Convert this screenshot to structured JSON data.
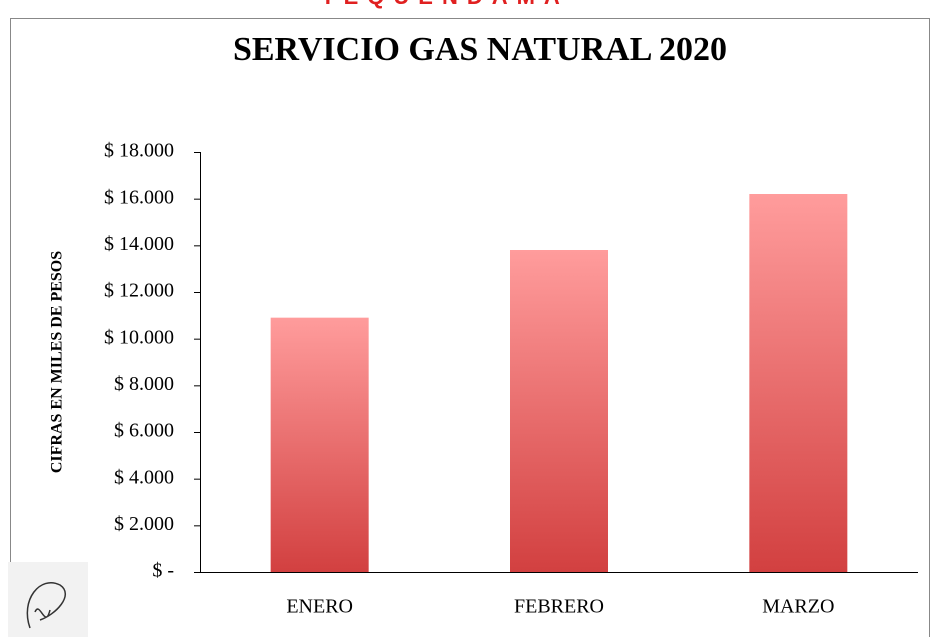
{
  "header": {
    "text": "TEQUENDAMA"
  },
  "chart_data": {
    "type": "bar",
    "title": "SERVICIO GAS NATURAL 2020",
    "y_label": "CIFRAS  EN MILES DE  PESOS",
    "categories": [
      "ENERO",
      "FEBRERO",
      "MARZO"
    ],
    "values": [
      10900,
      13800,
      16200
    ],
    "color_top": "#ff9c9c",
    "color_bottom": "#d24040",
    "ylim": [
      0,
      18000
    ],
    "yticks": [
      {
        "value": 0,
        "label": "$ -"
      },
      {
        "value": 2000,
        "label": "$ 2.000"
      },
      {
        "value": 4000,
        "label": "$ 4.000"
      },
      {
        "value": 6000,
        "label": "$ 6.000"
      },
      {
        "value": 8000,
        "label": "$ 8.000"
      },
      {
        "value": 10000,
        "label": "$ 10.000"
      },
      {
        "value": 12000,
        "label": "$ 12.000"
      },
      {
        "value": 14000,
        "label": "$ 14.000"
      },
      {
        "value": 16000,
        "label": "$ 16.000"
      },
      {
        "value": 18000,
        "label": "$ 18.000"
      }
    ],
    "grid": false
  }
}
